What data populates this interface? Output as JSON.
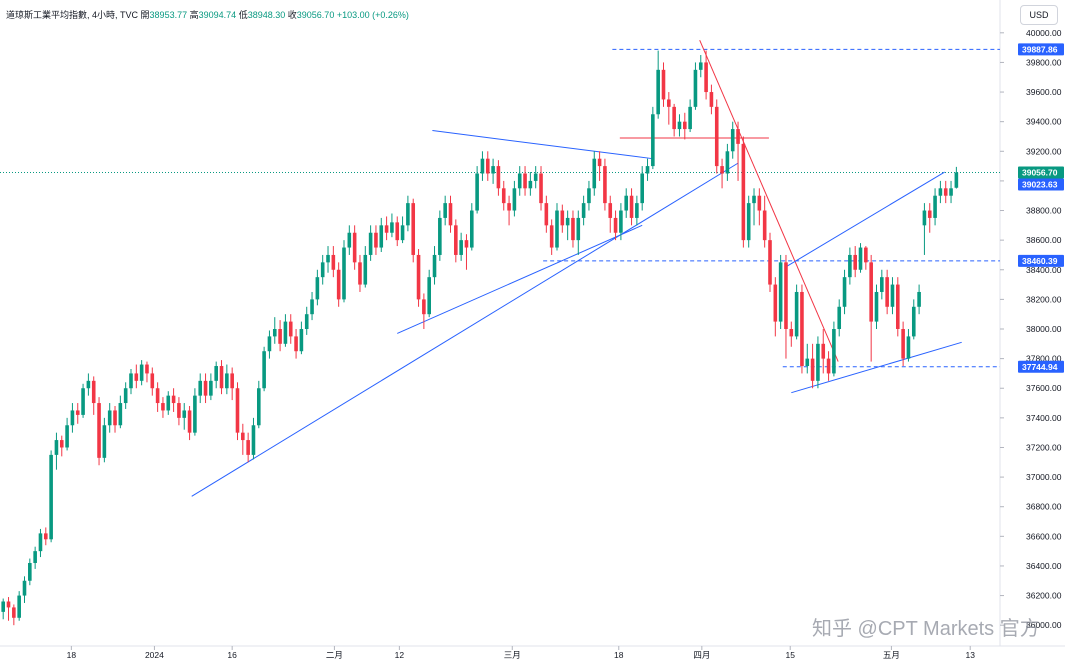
{
  "header": {
    "symbol": "道琼斯工業平均指數, 4小時, TVC",
    "open_label": "開",
    "open": "38953.77",
    "high_label": "高",
    "high": "39094.74",
    "low_label": "低",
    "low": "38948.30",
    "close_label": "收",
    "close": "39056.70",
    "change": "+103.00 (+0.26%)"
  },
  "currency": "USD",
  "watermark": "知乎 @CPT Markets 官方",
  "colors": {
    "up": "#089981",
    "down": "#f23645",
    "trend": "#2962ff",
    "tag": "#2962ff",
    "resistance": "#f23645"
  },
  "chart_data": {
    "type": "candlestick",
    "ylim": [
      35900,
      40100
    ],
    "y_ticks": [
      36000,
      36200,
      36400,
      36600,
      36800,
      37000,
      37200,
      37400,
      37600,
      37800,
      38000,
      38200,
      38400,
      38600,
      38800,
      39000,
      39200,
      39400,
      39600,
      39800,
      40000
    ],
    "x_ticks": [
      {
        "label": "18",
        "x": 0.067
      },
      {
        "label": "2024",
        "x": 0.145
      },
      {
        "label": "16",
        "x": 0.218
      },
      {
        "label": "二月",
        "x": 0.314
      },
      {
        "label": "12",
        "x": 0.375
      },
      {
        "label": "三月",
        "x": 0.481
      },
      {
        "label": "18",
        "x": 0.581
      },
      {
        "label": "四月",
        "x": 0.659
      },
      {
        "label": "15",
        "x": 0.742
      },
      {
        "label": "五月",
        "x": 0.837
      },
      {
        "label": "13",
        "x": 0.911
      }
    ],
    "price_tags": [
      {
        "label": "39887.86",
        "value": 39887.86,
        "line": "dashed"
      },
      {
        "label": "39056.70",
        "value": 39056.7,
        "line": "dotted",
        "kind": "current"
      },
      {
        "label": "39023.63",
        "value": 39023.63,
        "line": "none"
      },
      {
        "label": "38460.39",
        "value": 38460.39,
        "line": "dashed"
      },
      {
        "label": "37744.94",
        "value": 37744.94,
        "line": "dashed"
      }
    ],
    "trendlines": [
      {
        "from": [
          0.18,
          36870
        ],
        "to": [
          0.693,
          39120
        ],
        "color": "trend"
      },
      {
        "from": [
          0.373,
          37970
        ],
        "to": [
          0.603,
          38700
        ],
        "color": "trend"
      },
      {
        "from": [
          0.406,
          39340
        ],
        "to": [
          0.613,
          39150
        ],
        "color": "trend"
      },
      {
        "from": [
          0.657,
          39950
        ],
        "to": [
          0.787,
          37780
        ],
        "color": "resistance"
      },
      {
        "from": [
          0.582,
          39290
        ],
        "to": [
          0.722,
          39290
        ],
        "color": "resistance"
      },
      {
        "from": [
          0.738,
          38420
        ],
        "to": [
          0.887,
          39060
        ],
        "color": "trend"
      },
      {
        "from": [
          0.743,
          37570
        ],
        "to": [
          0.903,
          37910
        ],
        "color": "trend"
      }
    ],
    "candles": [
      [
        0.003,
        36090,
        36160,
        36040,
        36180
      ],
      [
        0.008,
        36160,
        36120,
        36030,
        36190
      ],
      [
        0.013,
        36120,
        36050,
        36000,
        36140
      ],
      [
        0.018,
        36050,
        36200,
        36030,
        36230
      ],
      [
        0.023,
        36200,
        36300,
        36150,
        36330
      ],
      [
        0.028,
        36300,
        36420,
        36270,
        36450
      ],
      [
        0.033,
        36420,
        36500,
        36380,
        36530
      ],
      [
        0.038,
        36500,
        36620,
        36460,
        36650
      ],
      [
        0.043,
        36620,
        36580,
        36540,
        36660
      ],
      [
        0.048,
        36580,
        37150,
        36560,
        37180
      ],
      [
        0.053,
        37150,
        37250,
        37050,
        37300
      ],
      [
        0.058,
        37250,
        37200,
        37140,
        37280
      ],
      [
        0.063,
        37200,
        37350,
        37180,
        37400
      ],
      [
        0.068,
        37350,
        37450,
        37300,
        37500
      ],
      [
        0.073,
        37450,
        37420,
        37360,
        37500
      ],
      [
        0.078,
        37420,
        37600,
        37400,
        37630
      ],
      [
        0.083,
        37600,
        37650,
        37550,
        37700
      ],
      [
        0.088,
        37650,
        37500,
        37420,
        37680
      ],
      [
        0.093,
        37500,
        37130,
        37080,
        37540
      ],
      [
        0.098,
        37130,
        37350,
        37100,
        37400
      ],
      [
        0.103,
        37350,
        37450,
        37300,
        37500
      ],
      [
        0.108,
        37450,
        37350,
        37300,
        37480
      ],
      [
        0.113,
        37350,
        37500,
        37330,
        37550
      ],
      [
        0.118,
        37500,
        37600,
        37460,
        37640
      ],
      [
        0.123,
        37600,
        37700,
        37560,
        37730
      ],
      [
        0.128,
        37700,
        37650,
        37600,
        37760
      ],
      [
        0.133,
        37650,
        37760,
        37620,
        37790
      ],
      [
        0.138,
        37760,
        37700,
        37640,
        37780
      ],
      [
        0.143,
        37700,
        37600,
        37550,
        37740
      ],
      [
        0.148,
        37600,
        37500,
        37440,
        37640
      ],
      [
        0.153,
        37500,
        37450,
        37400,
        37540
      ],
      [
        0.158,
        37450,
        37550,
        37420,
        37580
      ],
      [
        0.163,
        37550,
        37500,
        37440,
        37600
      ],
      [
        0.168,
        37500,
        37400,
        37350,
        37540
      ],
      [
        0.173,
        37400,
        37450,
        37320,
        37500
      ],
      [
        0.178,
        37450,
        37300,
        37250,
        37480
      ],
      [
        0.183,
        37300,
        37550,
        37280,
        37600
      ],
      [
        0.188,
        37550,
        37650,
        37500,
        37700
      ],
      [
        0.193,
        37650,
        37550,
        37500,
        37700
      ],
      [
        0.198,
        37550,
        37650,
        37520,
        37700
      ],
      [
        0.203,
        37650,
        37750,
        37600,
        37780
      ],
      [
        0.208,
        37750,
        37600,
        37560,
        37790
      ],
      [
        0.213,
        37600,
        37700,
        37560,
        37760
      ],
      [
        0.218,
        37700,
        37600,
        37520,
        37740
      ],
      [
        0.223,
        37600,
        37300,
        37250,
        37640
      ],
      [
        0.228,
        37300,
        37250,
        37150,
        37360
      ],
      [
        0.233,
        37250,
        37150,
        37100,
        37300
      ],
      [
        0.238,
        37150,
        37350,
        37120,
        37400
      ],
      [
        0.243,
        37350,
        37600,
        37330,
        37650
      ],
      [
        0.248,
        37600,
        37850,
        37580,
        37880
      ],
      [
        0.253,
        37850,
        37950,
        37800,
        37990
      ],
      [
        0.258,
        37950,
        38000,
        37900,
        38080
      ],
      [
        0.263,
        38000,
        37900,
        37850,
        38060
      ],
      [
        0.268,
        37900,
        38050,
        37880,
        38100
      ],
      [
        0.273,
        38050,
        37950,
        37900,
        38100
      ],
      [
        0.278,
        37950,
        37850,
        37800,
        38000
      ],
      [
        0.283,
        37850,
        38000,
        37830,
        38050
      ],
      [
        0.288,
        38000,
        38100,
        37960,
        38150
      ],
      [
        0.293,
        38100,
        38200,
        38060,
        38250
      ],
      [
        0.298,
        38200,
        38350,
        38160,
        38400
      ],
      [
        0.303,
        38350,
        38450,
        38300,
        38500
      ],
      [
        0.308,
        38450,
        38500,
        38380,
        38560
      ],
      [
        0.313,
        38500,
        38400,
        38350,
        38560
      ],
      [
        0.318,
        38400,
        38200,
        38150,
        38450
      ],
      [
        0.323,
        38200,
        38550,
        38180,
        38600
      ],
      [
        0.328,
        38550,
        38650,
        38500,
        38700
      ],
      [
        0.333,
        38650,
        38450,
        38400,
        38700
      ],
      [
        0.338,
        38450,
        38300,
        38250,
        38500
      ],
      [
        0.343,
        38300,
        38500,
        38280,
        38560
      ],
      [
        0.348,
        38500,
        38650,
        38460,
        38700
      ],
      [
        0.353,
        38650,
        38550,
        38500,
        38700
      ],
      [
        0.358,
        38550,
        38700,
        38520,
        38750
      ],
      [
        0.363,
        38700,
        38650,
        38600,
        38760
      ],
      [
        0.368,
        38650,
        38720,
        38620,
        38780
      ],
      [
        0.373,
        38720,
        38600,
        38560,
        38760
      ],
      [
        0.378,
        38600,
        38700,
        38580,
        38760
      ],
      [
        0.383,
        38700,
        38850,
        38660,
        38900
      ],
      [
        0.388,
        38850,
        38500,
        38450,
        38880
      ],
      [
        0.393,
        38500,
        38200,
        38150,
        38540
      ],
      [
        0.398,
        38200,
        38100,
        38000,
        38240
      ],
      [
        0.403,
        38100,
        38350,
        38080,
        38400
      ],
      [
        0.408,
        38350,
        38500,
        38300,
        38560
      ],
      [
        0.413,
        38500,
        38750,
        38460,
        38800
      ],
      [
        0.418,
        38750,
        38850,
        38700,
        38900
      ],
      [
        0.423,
        38850,
        38700,
        38650,
        38900
      ],
      [
        0.428,
        38700,
        38500,
        38450,
        38740
      ],
      [
        0.433,
        38500,
        38600,
        38460,
        38650
      ],
      [
        0.438,
        38600,
        38550,
        38400,
        38640
      ],
      [
        0.443,
        38550,
        38800,
        38530,
        38850
      ],
      [
        0.448,
        38800,
        39050,
        38780,
        39100
      ],
      [
        0.453,
        39050,
        39150,
        39000,
        39200
      ],
      [
        0.458,
        39150,
        39050,
        39000,
        39200
      ],
      [
        0.463,
        39050,
        39100,
        38980,
        39150
      ],
      [
        0.468,
        39100,
        38950,
        38900,
        39140
      ],
      [
        0.473,
        38950,
        38850,
        38800,
        39000
      ],
      [
        0.478,
        38850,
        38800,
        38700,
        38900
      ],
      [
        0.483,
        38800,
        38950,
        38760,
        39000
      ],
      [
        0.488,
        38950,
        39050,
        38900,
        39100
      ],
      [
        0.493,
        39050,
        38950,
        38900,
        39100
      ],
      [
        0.498,
        38950,
        39000,
        38900,
        39060
      ],
      [
        0.503,
        39000,
        39050,
        38950,
        39100
      ],
      [
        0.508,
        39050,
        38850,
        38800,
        39100
      ],
      [
        0.513,
        38850,
        38700,
        38650,
        38900
      ],
      [
        0.518,
        38700,
        38550,
        38500,
        38740
      ],
      [
        0.523,
        38550,
        38800,
        38530,
        38850
      ],
      [
        0.528,
        38800,
        38700,
        38650,
        38840
      ],
      [
        0.533,
        38700,
        38750,
        38600,
        38800
      ],
      [
        0.538,
        38750,
        38600,
        38550,
        38800
      ],
      [
        0.543,
        38600,
        38750,
        38500,
        38800
      ],
      [
        0.548,
        38750,
        38850,
        38700,
        38900
      ],
      [
        0.553,
        38850,
        38950,
        38800,
        39000
      ],
      [
        0.558,
        38950,
        39150,
        38900,
        39200
      ],
      [
        0.563,
        39150,
        39100,
        39000,
        39200
      ],
      [
        0.568,
        39100,
        38850,
        38800,
        39150
      ],
      [
        0.573,
        38850,
        38750,
        38650,
        38900
      ],
      [
        0.578,
        38750,
        38650,
        38600,
        38800
      ],
      [
        0.583,
        38650,
        38800,
        38600,
        38850
      ],
      [
        0.588,
        38800,
        38900,
        38750,
        38950
      ],
      [
        0.593,
        38900,
        38750,
        38700,
        38950
      ],
      [
        0.598,
        38750,
        38850,
        38700,
        38900
      ],
      [
        0.603,
        38850,
        39050,
        38800,
        39100
      ],
      [
        0.608,
        39050,
        39100,
        39000,
        39150
      ],
      [
        0.613,
        39100,
        39450,
        39080,
        39500
      ],
      [
        0.618,
        39450,
        39750,
        39420,
        39880
      ],
      [
        0.623,
        39750,
        39550,
        39500,
        39800
      ],
      [
        0.628,
        39550,
        39500,
        39380,
        39600
      ],
      [
        0.633,
        39500,
        39350,
        39300,
        39520
      ],
      [
        0.638,
        39350,
        39400,
        39300,
        39450
      ],
      [
        0.643,
        39400,
        39350,
        39280,
        39460
      ],
      [
        0.648,
        39350,
        39500,
        39330,
        39550
      ],
      [
        0.653,
        39500,
        39750,
        39480,
        39800
      ],
      [
        0.658,
        39750,
        39800,
        39700,
        39850
      ],
      [
        0.663,
        39800,
        39600,
        39550,
        39880
      ],
      [
        0.668,
        39600,
        39500,
        39450,
        39650
      ],
      [
        0.673,
        39500,
        39100,
        39050,
        39550
      ],
      [
        0.678,
        39100,
        39050,
        38950,
        39150
      ],
      [
        0.683,
        39050,
        39200,
        39000,
        39250
      ],
      [
        0.688,
        39200,
        39350,
        39150,
        39400
      ],
      [
        0.693,
        39350,
        39250,
        39000,
        39400
      ],
      [
        0.698,
        39250,
        38600,
        38550,
        39300
      ],
      [
        0.703,
        38600,
        38850,
        38550,
        38900
      ],
      [
        0.708,
        38850,
        38900,
        38700,
        38950
      ],
      [
        0.713,
        38900,
        38800,
        38700,
        38950
      ],
      [
        0.718,
        38800,
        38600,
        38550,
        38900
      ],
      [
        0.723,
        38600,
        38300,
        38250,
        38650
      ],
      [
        0.728,
        38300,
        38050,
        37950,
        38350
      ],
      [
        0.733,
        38050,
        38450,
        38000,
        38500
      ],
      [
        0.738,
        38450,
        38000,
        37800,
        38500
      ],
      [
        0.743,
        38000,
        37950,
        37880,
        38050
      ],
      [
        0.748,
        37950,
        38250,
        37930,
        38300
      ],
      [
        0.753,
        38250,
        37750,
        37700,
        38300
      ],
      [
        0.758,
        37750,
        37800,
        37700,
        37900
      ],
      [
        0.763,
        37800,
        37650,
        37600,
        37900
      ],
      [
        0.768,
        37650,
        37900,
        37600,
        37950
      ],
      [
        0.773,
        37900,
        37800,
        37700,
        38000
      ],
      [
        0.778,
        37800,
        37700,
        37650,
        37850
      ],
      [
        0.783,
        37700,
        38000,
        37680,
        38050
      ],
      [
        0.788,
        38000,
        38150,
        37950,
        38200
      ],
      [
        0.793,
        38150,
        38350,
        38100,
        38400
      ],
      [
        0.798,
        38350,
        38500,
        38300,
        38550
      ],
      [
        0.803,
        38500,
        38400,
        38350,
        38560
      ],
      [
        0.808,
        38400,
        38550,
        38380,
        38580
      ],
      [
        0.813,
        38550,
        38450,
        38400,
        38560
      ],
      [
        0.818,
        38450,
        38050,
        37780,
        38500
      ],
      [
        0.823,
        38050,
        38250,
        38000,
        38300
      ],
      [
        0.828,
        38250,
        38350,
        38200,
        38400
      ],
      [
        0.833,
        38350,
        38150,
        38100,
        38400
      ],
      [
        0.838,
        38150,
        38300,
        38100,
        38350
      ],
      [
        0.843,
        38300,
        38000,
        37950,
        38350
      ],
      [
        0.848,
        38000,
        37800,
        37750,
        38050
      ],
      [
        0.853,
        37800,
        37950,
        37780,
        38000
      ],
      [
        0.858,
        37950,
        38150,
        37930,
        38200
      ],
      [
        0.863,
        38150,
        38250,
        38100,
        38300
      ],
      [
        0.868,
        38700,
        38800,
        38500,
        38850
      ],
      [
        0.873,
        38800,
        38750,
        38650,
        38850
      ],
      [
        0.878,
        38750,
        38900,
        38700,
        38950
      ],
      [
        0.883,
        38900,
        38950,
        38850,
        39000
      ],
      [
        0.888,
        38950,
        38900,
        38850,
        39000
      ],
      [
        0.893,
        38900,
        38950,
        38850,
        39000
      ],
      [
        0.898,
        38953.77,
        39056.7,
        38948.3,
        39094.74
      ]
    ]
  }
}
